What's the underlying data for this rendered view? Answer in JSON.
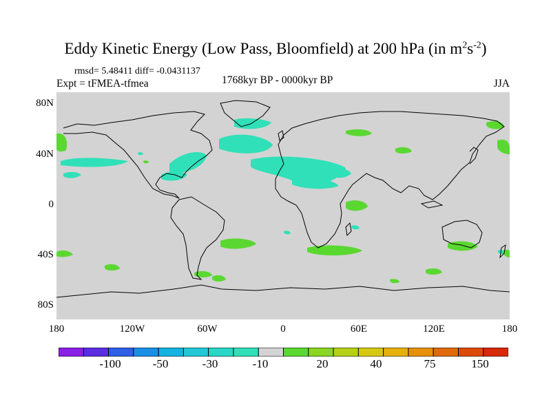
{
  "title": {
    "main": "Eddy Kinetic Energy (Low Pass, Bloomfield) at 200 hPa (in m",
    "sup1": "2",
    "mid": "s",
    "sup2": "-2",
    "close": ")"
  },
  "stats": {
    "text": "rmsd= 5.48411 diff= -0.0431137"
  },
  "experiment": "Expt = tFMEA-tfmea",
  "period": "1768kyr BP - 0000kyr BP",
  "season": "JJA",
  "axes": {
    "y_ticks": [
      "80N",
      "40N",
      "0",
      "40S",
      "80S"
    ],
    "x_ticks": [
      "180",
      "120W",
      "60W",
      "0",
      "60E",
      "120E",
      "180"
    ]
  },
  "colorbar": {
    "colors": [
      "#8a1fe6",
      "#5a2ee0",
      "#2f5fe6",
      "#1a8fe6",
      "#13b3e0",
      "#22c8d6",
      "#2ad6c6",
      "#30e0b8",
      "#d3d3d3",
      "#5ad831",
      "#8ad622",
      "#b4d018",
      "#d6c810",
      "#e6b00c",
      "#e6900c",
      "#e06a0a",
      "#dc4a08",
      "#d62a06"
    ],
    "labels": [
      "-100",
      "-50",
      "-30",
      "-10",
      "20",
      "40",
      "75",
      "150"
    ]
  },
  "map_colors": {
    "ocean_land": "#d3d3d3",
    "negative": "#30e0b8",
    "positive": "#5ad831",
    "coast": "#000000"
  }
}
